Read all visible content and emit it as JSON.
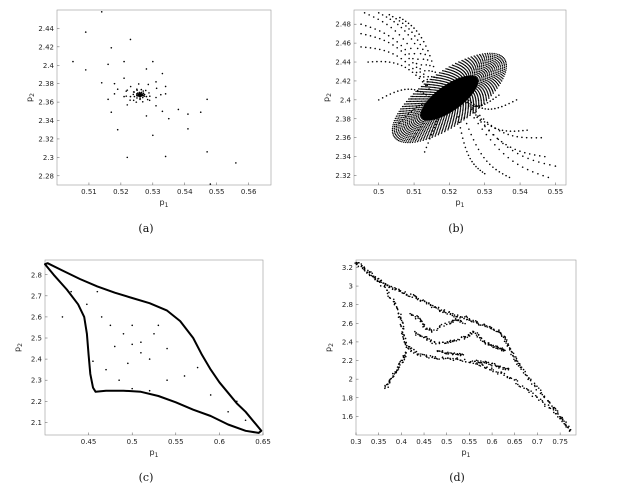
{
  "captions": [
    "(a)",
    "(b)",
    "(c)",
    "(d)"
  ],
  "chart_data": [
    {
      "type": "scatter",
      "title": "",
      "xlabel": "p1",
      "ylabel": "p2",
      "xlim": [
        0.5,
        0.567
      ],
      "ylim": [
        2.27,
        2.46
      ],
      "xticks": [
        "0.51",
        "0.52",
        "0.53",
        "0.54",
        "0.55",
        "0.56"
      ],
      "xtick_values": [
        0.51,
        0.52,
        0.53,
        0.54,
        0.55,
        0.56
      ],
      "yticks": [
        "2.28",
        "2.3",
        "2.32",
        "2.34",
        "2.36",
        "2.38",
        "2.4",
        "2.42",
        "2.44"
      ],
      "ytick_values": [
        2.28,
        2.3,
        2.32,
        2.34,
        2.36,
        2.38,
        2.4,
        2.42,
        2.44
      ],
      "grid": false,
      "description_fixed_point": [
        0.526,
        2.368
      ],
      "points": [
        [
          0.514,
          2.458
        ],
        [
          0.509,
          2.436
        ],
        [
          0.517,
          2.419
        ],
        [
          0.523,
          2.428
        ],
        [
          0.521,
          2.404
        ],
        [
          0.505,
          2.404
        ],
        [
          0.509,
          2.395
        ],
        [
          0.516,
          2.401
        ],
        [
          0.53,
          2.404
        ],
        [
          0.528,
          2.396
        ],
        [
          0.521,
          2.386
        ],
        [
          0.518,
          2.38
        ],
        [
          0.514,
          2.381
        ],
        [
          0.516,
          2.363
        ],
        [
          0.533,
          2.391
        ],
        [
          0.531,
          2.382
        ],
        [
          0.534,
          2.377
        ],
        [
          0.519,
          2.374
        ],
        [
          0.522,
          2.373
        ],
        [
          0.522,
          2.357
        ],
        [
          0.524,
          2.362
        ],
        [
          0.529,
          2.362
        ],
        [
          0.531,
          2.365
        ],
        [
          0.534,
          2.369
        ],
        [
          0.531,
          2.356
        ],
        [
          0.533,
          2.35
        ],
        [
          0.538,
          2.352
        ],
        [
          0.541,
          2.347
        ],
        [
          0.545,
          2.349
        ],
        [
          0.547,
          2.363
        ],
        [
          0.519,
          2.33
        ],
        [
          0.517,
          2.349
        ],
        [
          0.53,
          2.324
        ],
        [
          0.541,
          2.331
        ],
        [
          0.535,
          2.342
        ],
        [
          0.522,
          2.3
        ],
        [
          0.534,
          2.301
        ],
        [
          0.547,
          2.306
        ],
        [
          0.556,
          2.294
        ],
        [
          0.548,
          2.271
        ],
        [
          0.528,
          2.345
        ],
        [
          0.518,
          2.369
        ],
        [
          0.521,
          2.366
        ],
        [
          0.524,
          2.371
        ],
        [
          0.525,
          2.374
        ],
        [
          0.527,
          2.372
        ],
        [
          0.528,
          2.366
        ],
        [
          0.526,
          2.363
        ],
        [
          0.523,
          2.366
        ],
        [
          0.525,
          2.369
        ],
        [
          0.527,
          2.369
        ],
        [
          0.526,
          2.366
        ],
        [
          0.526,
          2.368
        ],
        [
          0.525,
          2.367
        ],
        [
          0.527,
          2.367
        ],
        [
          0.526,
          2.37
        ]
      ]
    },
    {
      "type": "scatter",
      "title": "",
      "xlabel": "p1",
      "ylabel": "p2",
      "xlim": [
        0.493,
        0.553
      ],
      "ylim": [
        2.31,
        2.495
      ],
      "xticks": [
        "0.5",
        "0.51",
        "0.52",
        "0.53",
        "0.54",
        "0.55"
      ],
      "xtick_values": [
        0.5,
        0.51,
        0.52,
        0.53,
        0.54,
        0.55
      ],
      "yticks": [
        "2.32",
        "2.34",
        "2.36",
        "2.38",
        "2.4",
        "2.42",
        "2.44",
        "2.46",
        "2.48"
      ],
      "ytick_values": [
        2.32,
        2.34,
        2.36,
        2.38,
        2.4,
        2.42,
        2.44,
        2.46,
        2.48
      ],
      "grid": false,
      "ellipse_center": [
        0.52,
        2.402
      ],
      "trajectory_starts": [
        [
          0.496,
          2.492
        ],
        [
          0.5,
          2.492
        ],
        [
          0.503,
          2.49
        ],
        [
          0.506,
          2.487
        ],
        [
          0.495,
          2.48
        ],
        [
          0.495,
          2.47
        ],
        [
          0.495,
          2.456
        ],
        [
          0.497,
          2.44
        ],
        [
          0.5,
          2.4
        ],
        [
          0.505,
          2.372
        ],
        [
          0.51,
          2.36
        ],
        [
          0.513,
          2.345
        ],
        [
          0.534,
          2.405
        ],
        [
          0.539,
          2.4
        ],
        [
          0.542,
          2.368
        ],
        [
          0.546,
          2.36
        ],
        [
          0.547,
          2.34
        ],
        [
          0.55,
          2.33
        ],
        [
          0.548,
          2.318
        ],
        [
          0.537,
          2.318
        ],
        [
          0.53,
          2.322
        ]
      ]
    },
    {
      "type": "scatter",
      "title": "",
      "xlabel": "p1",
      "ylabel": "p2",
      "xlim": [
        0.4,
        0.65
      ],
      "ylim": [
        2.04,
        2.87
      ],
      "xticks": [
        "0.45",
        "0.5",
        "0.55",
        "0.6",
        "0.65"
      ],
      "xtick_values": [
        0.45,
        0.5,
        0.55,
        0.6,
        0.65
      ],
      "yticks": [
        "2.1",
        "2.2",
        "2.3",
        "2.4",
        "2.5",
        "2.6",
        "2.7",
        "2.8"
      ],
      "ytick_values": [
        2.1,
        2.2,
        2.3,
        2.4,
        2.5,
        2.6,
        2.7,
        2.8
      ],
      "grid": false,
      "curve": [
        [
          0.4,
          2.85
        ],
        [
          0.403,
          2.855
        ],
        [
          0.42,
          2.82
        ],
        [
          0.44,
          2.78
        ],
        [
          0.46,
          2.745
        ],
        [
          0.48,
          2.715
        ],
        [
          0.5,
          2.69
        ],
        [
          0.52,
          2.665
        ],
        [
          0.54,
          2.63
        ],
        [
          0.555,
          2.58
        ],
        [
          0.57,
          2.5
        ],
        [
          0.58,
          2.42
        ],
        [
          0.59,
          2.35
        ],
        [
          0.6,
          2.29
        ],
        [
          0.61,
          2.24
        ],
        [
          0.62,
          2.19
        ],
        [
          0.63,
          2.15
        ],
        [
          0.64,
          2.1
        ],
        [
          0.648,
          2.06
        ],
        [
          0.645,
          2.05
        ],
        [
          0.63,
          2.06
        ],
        [
          0.61,
          2.09
        ],
        [
          0.59,
          2.13
        ],
        [
          0.57,
          2.16
        ],
        [
          0.55,
          2.195
        ],
        [
          0.53,
          2.225
        ],
        [
          0.51,
          2.245
        ],
        [
          0.49,
          2.25
        ],
        [
          0.47,
          2.25
        ],
        [
          0.458,
          2.245
        ],
        [
          0.455,
          2.265
        ],
        [
          0.452,
          2.33
        ],
        [
          0.45,
          2.42
        ],
        [
          0.448,
          2.52
        ],
        [
          0.445,
          2.6
        ],
        [
          0.438,
          2.66
        ],
        [
          0.425,
          2.73
        ],
        [
          0.41,
          2.8
        ],
        [
          0.4,
          2.85
        ]
      ],
      "points": [
        [
          0.43,
          2.72
        ],
        [
          0.448,
          2.66
        ],
        [
          0.465,
          2.6
        ],
        [
          0.475,
          2.56
        ],
        [
          0.49,
          2.52
        ],
        [
          0.5,
          2.47
        ],
        [
          0.51,
          2.43
        ],
        [
          0.52,
          2.4
        ],
        [
          0.48,
          2.46
        ],
        [
          0.495,
          2.38
        ],
        [
          0.51,
          2.48
        ],
        [
          0.525,
          2.52
        ],
        [
          0.54,
          2.45
        ],
        [
          0.455,
          2.39
        ],
        [
          0.47,
          2.35
        ],
        [
          0.485,
          2.3
        ],
        [
          0.5,
          2.26
        ],
        [
          0.52,
          2.25
        ],
        [
          0.54,
          2.3
        ],
        [
          0.56,
          2.32
        ],
        [
          0.575,
          2.36
        ],
        [
          0.59,
          2.23
        ],
        [
          0.61,
          2.15
        ],
        [
          0.63,
          2.11
        ],
        [
          0.5,
          2.56
        ],
        [
          0.53,
          2.56
        ],
        [
          0.46,
          2.72
        ],
        [
          0.42,
          2.6
        ],
        [
          0.62,
          2.2
        ]
      ]
    },
    {
      "type": "scatter",
      "title": "",
      "xlabel": "p1",
      "ylabel": "p2",
      "xlim": [
        0.3,
        0.785
      ],
      "ylim": [
        1.4,
        3.28
      ],
      "xticks": [
        "0.3",
        "0.35",
        "0.4",
        "0.45",
        "0.5",
        "0.55",
        "0.6",
        "0.65",
        "0.7",
        "0.75"
      ],
      "xtick_values": [
        0.3,
        0.35,
        0.4,
        0.45,
        0.5,
        0.55,
        0.6,
        0.65,
        0.7,
        0.75
      ],
      "yticks": [
        "1.6",
        "1.8",
        "2",
        "2.2",
        "2.4",
        "2.6",
        "2.8",
        "3",
        "3.2"
      ],
      "ytick_values": [
        1.6,
        1.8,
        2.0,
        2.2,
        2.4,
        2.6,
        2.8,
        3.0,
        3.2
      ],
      "grid": false,
      "paths": [
        [
          [
            0.3,
            3.26
          ],
          [
            0.32,
            3.18
          ],
          [
            0.34,
            3.1
          ],
          [
            0.36,
            3.04
          ],
          [
            0.38,
            2.98
          ],
          [
            0.4,
            2.94
          ],
          [
            0.42,
            2.9
          ],
          [
            0.44,
            2.86
          ],
          [
            0.46,
            2.8
          ],
          [
            0.48,
            2.76
          ],
          [
            0.5,
            2.72
          ],
          [
            0.52,
            2.68
          ],
          [
            0.54,
            2.66
          ],
          [
            0.56,
            2.62
          ],
          [
            0.58,
            2.58
          ],
          [
            0.6,
            2.54
          ],
          [
            0.62,
            2.5
          ],
          [
            0.63,
            2.42
          ],
          [
            0.64,
            2.32
          ],
          [
            0.65,
            2.22
          ],
          [
            0.66,
            2.14
          ],
          [
            0.68,
            2.02
          ],
          [
            0.7,
            1.9
          ],
          [
            0.72,
            1.78
          ],
          [
            0.74,
            1.66
          ],
          [
            0.76,
            1.54
          ],
          [
            0.775,
            1.44
          ]
        ],
        [
          [
            0.3,
            3.26
          ],
          [
            0.33,
            3.14
          ],
          [
            0.36,
            3.0
          ],
          [
            0.38,
            2.86
          ],
          [
            0.395,
            2.72
          ],
          [
            0.4,
            2.6
          ],
          [
            0.405,
            2.48
          ],
          [
            0.41,
            2.38
          ],
          [
            0.42,
            2.32
          ],
          [
            0.44,
            2.26
          ],
          [
            0.47,
            2.23
          ],
          [
            0.5,
            2.22
          ],
          [
            0.53,
            2.21
          ],
          [
            0.56,
            2.18
          ],
          [
            0.59,
            2.12
          ],
          [
            0.62,
            2.06
          ],
          [
            0.65,
            1.98
          ],
          [
            0.68,
            1.88
          ],
          [
            0.71,
            1.76
          ],
          [
            0.74,
            1.64
          ],
          [
            0.775,
            1.44
          ]
        ],
        [
          [
            0.365,
            1.9
          ],
          [
            0.375,
            1.98
          ],
          [
            0.385,
            2.06
          ],
          [
            0.395,
            2.14
          ],
          [
            0.405,
            2.22
          ],
          [
            0.41,
            2.3
          ]
        ],
        [
          [
            0.43,
            2.5
          ],
          [
            0.45,
            2.45
          ],
          [
            0.47,
            2.4
          ],
          [
            0.5,
            2.38
          ],
          [
            0.52,
            2.42
          ],
          [
            0.545,
            2.46
          ],
          [
            0.56,
            2.5
          ],
          [
            0.575,
            2.44
          ],
          [
            0.59,
            2.38
          ],
          [
            0.605,
            2.35
          ],
          [
            0.62,
            2.33
          ],
          [
            0.63,
            2.3
          ]
        ],
        [
          [
            0.42,
            2.7
          ],
          [
            0.44,
            2.65
          ],
          [
            0.45,
            2.56
          ],
          [
            0.47,
            2.52
          ],
          [
            0.5,
            2.6
          ],
          [
            0.52,
            2.64
          ],
          [
            0.54,
            2.6
          ]
        ],
        [
          [
            0.56,
            2.19
          ],
          [
            0.58,
            2.18
          ],
          [
            0.6,
            2.16
          ],
          [
            0.62,
            2.12
          ],
          [
            0.64,
            2.1
          ]
        ],
        [
          [
            0.48,
            2.3
          ],
          [
            0.5,
            2.28
          ],
          [
            0.52,
            2.27
          ],
          [
            0.54,
            2.26
          ]
        ]
      ]
    }
  ]
}
